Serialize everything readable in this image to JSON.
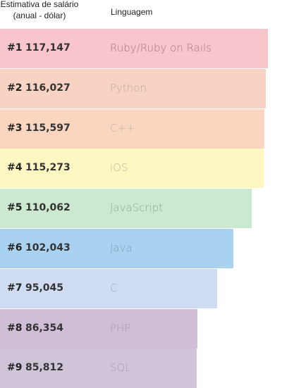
{
  "header": {
    "salary_line1": "Estimativa de salário",
    "salary_line2": "(anual - dólar)",
    "language": "Linguagem"
  },
  "chart_data": {
    "type": "bar",
    "orientation": "horizontal",
    "xlim": [
      0,
      118000
    ],
    "rows": [
      {
        "rank": "#1",
        "value": 117147,
        "label": "117,147",
        "language": "Ruby/Ruby on Rails",
        "color": "#f7c5cb",
        "text_color": "#a07a80"
      },
      {
        "rank": "#2",
        "value": 116027,
        "label": "116,027",
        "language": "Python",
        "color": "#f8d3c4",
        "text_color": "#b9a79e"
      },
      {
        "rank": "#3",
        "value": 115597,
        "label": "115,597",
        "language": "C++",
        "color": "#fad6c0",
        "text_color": "#bfb0a6"
      },
      {
        "rank": "#4",
        "value": 115273,
        "label": "115,273",
        "language": "iOS",
        "color": "#fdf8c2",
        "text_color": "#b4b3a0"
      },
      {
        "rank": "#5",
        "value": 110062,
        "label": "110,062",
        "language": "JavaScript",
        "color": "#cbe8d0",
        "text_color": "#8ea597"
      },
      {
        "rank": "#6",
        "value": 102043,
        "label": "102,043",
        "language": "Java",
        "color": "#a9d2f0",
        "text_color": "#7f9cb4"
      },
      {
        "rank": "#7",
        "value": 95045,
        "label": "95,045",
        "language": "C",
        "color": "#d0dcf2",
        "text_color": "#a0a8ba"
      },
      {
        "rank": "#8",
        "value": 86354,
        "label": "86,354",
        "language": "PHP",
        "color": "#cfbed6",
        "text_color": "#a699ab"
      },
      {
        "rank": "#9",
        "value": 85812,
        "label": "85,812",
        "language": "SQL",
        "color": "#cfc4d8",
        "text_color": "#a79dad"
      }
    ]
  }
}
